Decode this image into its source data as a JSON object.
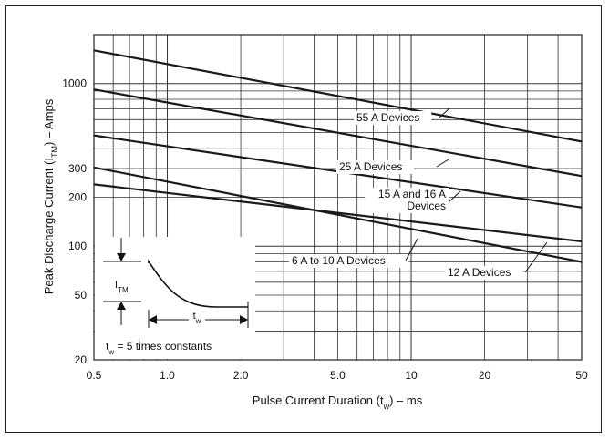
{
  "chart_data": {
    "type": "line",
    "xscale": "log",
    "yscale": "log",
    "xlim": [
      0.5,
      50
    ],
    "ylim": [
      20,
      2000
    ],
    "xlabel": "Pulse Current Duration (tw) – ms",
    "ylabel": "Peak Discharge Current (ITM) – Amps",
    "x_ticks": [
      "0.5",
      "1.0",
      "2.0",
      "5.0",
      "10",
      "20",
      "50"
    ],
    "x_tick_values": [
      0.5,
      1,
      2,
      5,
      10,
      20,
      50
    ],
    "y_ticks": [
      "20",
      "50",
      "100",
      "200",
      "300",
      "1000"
    ],
    "y_tick_values": [
      20,
      50,
      100,
      200,
      300,
      1000
    ],
    "grid": true,
    "line_color": "#1a1a1a",
    "series": [
      {
        "name": "55 A Devices",
        "x": [
          0.5,
          50
        ],
        "y": [
          1600,
          440
        ]
      },
      {
        "name": "25 A Devices",
        "x": [
          0.5,
          50
        ],
        "y": [
          920,
          270
        ]
      },
      {
        "name": "15 A and 16 A Devices",
        "x": [
          0.5,
          50
        ],
        "y": [
          480,
          173
        ]
      },
      {
        "name": "12 A Devices",
        "x": [
          0.5,
          50
        ],
        "y": [
          305,
          80
        ]
      },
      {
        "name": "6 A to 10 A Devices",
        "x": [
          0.5,
          50
        ],
        "y": [
          240,
          107
        ]
      }
    ],
    "labels": {
      "s55": "55 A Devices",
      "s25": "25 A Devices",
      "s15_line1": "15 A and 16 A",
      "s15_line2": "Devices",
      "s6": "6 A to 10 A Devices",
      "s12": "12 A Devices"
    },
    "inset": {
      "itm_main": "I",
      "itm_sub": "TM",
      "tw_main": "t",
      "tw_sub": "w",
      "caption_pre": "t",
      "caption_sub": "w",
      "caption_post": " = 5 times constants"
    },
    "axis_title_parts": {
      "x_pre": "Pulse Current Duration (t",
      "x_sub": "w",
      "x_post": ") – ms",
      "y_pre": "Peak Discharge Current (I",
      "y_sub": "TM",
      "y_post": ") – Amps"
    }
  }
}
